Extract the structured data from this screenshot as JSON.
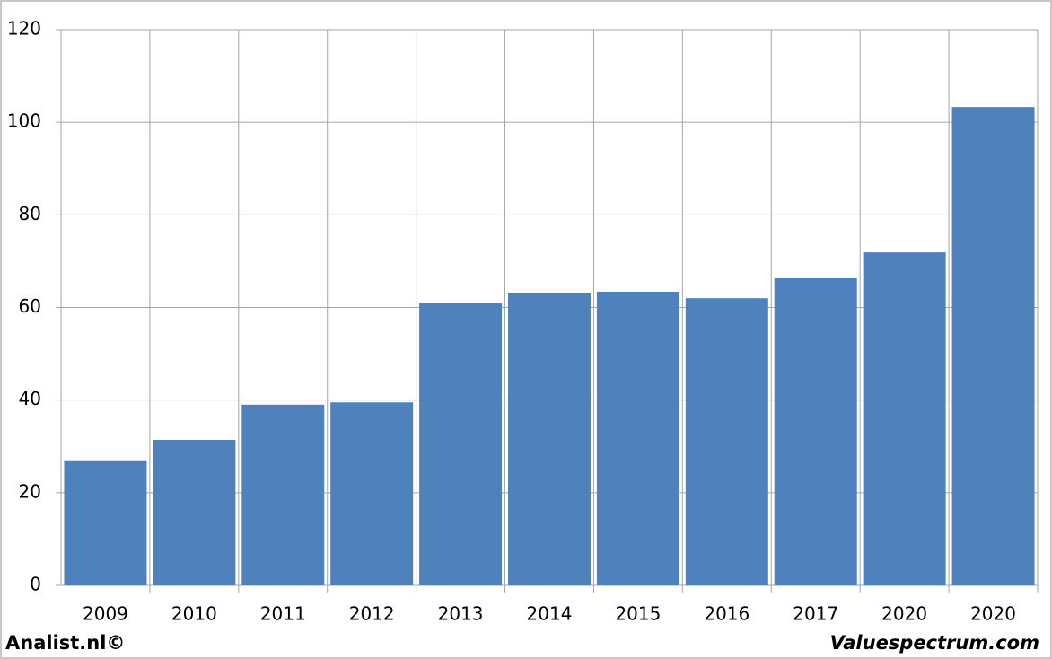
{
  "chart_data": {
    "type": "bar",
    "categories": [
      "2009",
      "2010",
      "2011",
      "2012",
      "2013",
      "2014",
      "2015",
      "2016",
      "2017",
      "2020",
      "2020"
    ],
    "values": [
      27,
      31.4,
      39,
      39.5,
      60.9,
      63.2,
      63.4,
      62,
      66.3,
      71.9,
      103.3
    ],
    "color": "#4f81bd",
    "ylim": [
      0,
      120
    ],
    "yticks": [
      0,
      20,
      40,
      60,
      80,
      100,
      120
    ],
    "grid": true,
    "annotations": [
      "Analist.nl©",
      "Valuespectrum.com"
    ]
  }
}
